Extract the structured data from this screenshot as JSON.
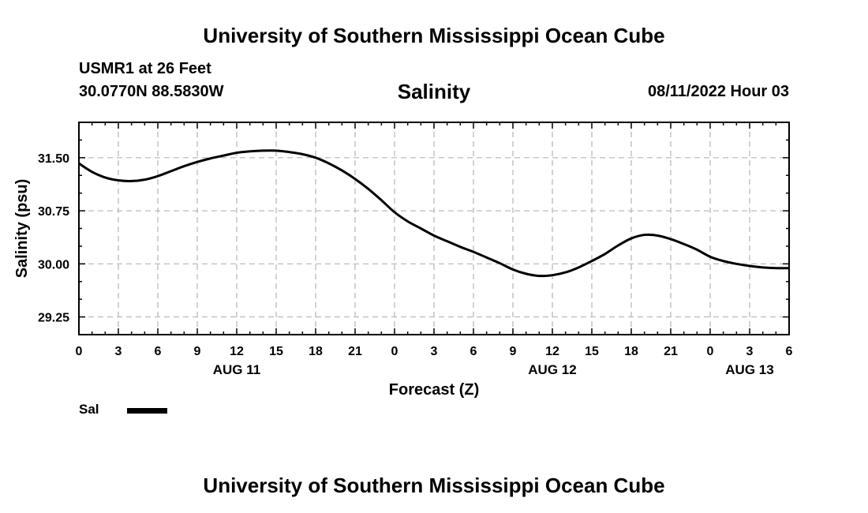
{
  "header": {
    "title": "University of Southern Mississippi Ocean Cube",
    "station": "USMR1 at 26 Feet",
    "coordinates": "30.0770N  88.5830W",
    "variable": "Salinity",
    "datetime": "08/11/2022 Hour 03"
  },
  "footer": {
    "title": "University of Southern Mississippi Ocean Cube"
  },
  "legend": {
    "label": "Sal",
    "color": "#000000"
  },
  "chart_data": {
    "type": "line",
    "title": "Salinity",
    "xlabel": "Forecast (Z)",
    "ylabel": "Salinity (psu)",
    "x_unit": "hours since 2022-08-11 00Z",
    "xlim": [
      0,
      54
    ],
    "ylim": [
      29.0,
      32.0
    ],
    "x_ticks": [
      0,
      3,
      6,
      9,
      12,
      15,
      18,
      21,
      24,
      27,
      30,
      33,
      36,
      39,
      42,
      45,
      48,
      51,
      54
    ],
    "x_tick_labels": [
      "0",
      "3",
      "6",
      "9",
      "12",
      "15",
      "18",
      "21",
      "0",
      "3",
      "6",
      "9",
      "12",
      "15",
      "18",
      "21",
      "0",
      "3",
      "6"
    ],
    "y_ticks": [
      29.25,
      30.0,
      30.75,
      31.5
    ],
    "y_tick_labels": [
      "29.25",
      "30.00",
      "30.75",
      "31.50"
    ],
    "date_labels": [
      {
        "x": 12,
        "label": "AUG 11"
      },
      {
        "x": 36,
        "label": "AUG 12"
      },
      {
        "x": 51,
        "label": "AUG 13"
      }
    ],
    "grid": true,
    "series": [
      {
        "name": "Sal",
        "x": [
          0,
          1,
          2,
          3,
          4,
          5,
          6,
          7,
          8,
          9,
          10,
          11,
          12,
          13,
          14,
          15,
          16,
          17,
          18,
          19,
          20,
          21,
          22,
          23,
          24,
          25,
          26,
          27,
          28,
          29,
          30,
          31,
          32,
          33,
          34,
          35,
          36,
          37,
          38,
          39,
          40,
          41,
          42,
          43,
          44,
          45,
          46,
          47,
          48,
          49,
          50,
          51,
          52,
          53,
          54
        ],
        "values": [
          31.42,
          31.3,
          31.22,
          31.18,
          31.17,
          31.19,
          31.24,
          31.31,
          31.38,
          31.44,
          31.49,
          31.53,
          31.57,
          31.59,
          31.6,
          31.6,
          31.58,
          31.55,
          31.5,
          31.42,
          31.32,
          31.2,
          31.06,
          30.9,
          30.73,
          30.6,
          30.5,
          30.4,
          30.32,
          30.24,
          30.17,
          30.09,
          30.01,
          29.92,
          29.86,
          29.83,
          29.84,
          29.88,
          29.95,
          30.04,
          30.14,
          30.26,
          30.36,
          30.41,
          30.4,
          30.35,
          30.28,
          30.2,
          30.1,
          30.04,
          30.0,
          29.97,
          29.95,
          29.94,
          29.94
        ]
      }
    ]
  }
}
